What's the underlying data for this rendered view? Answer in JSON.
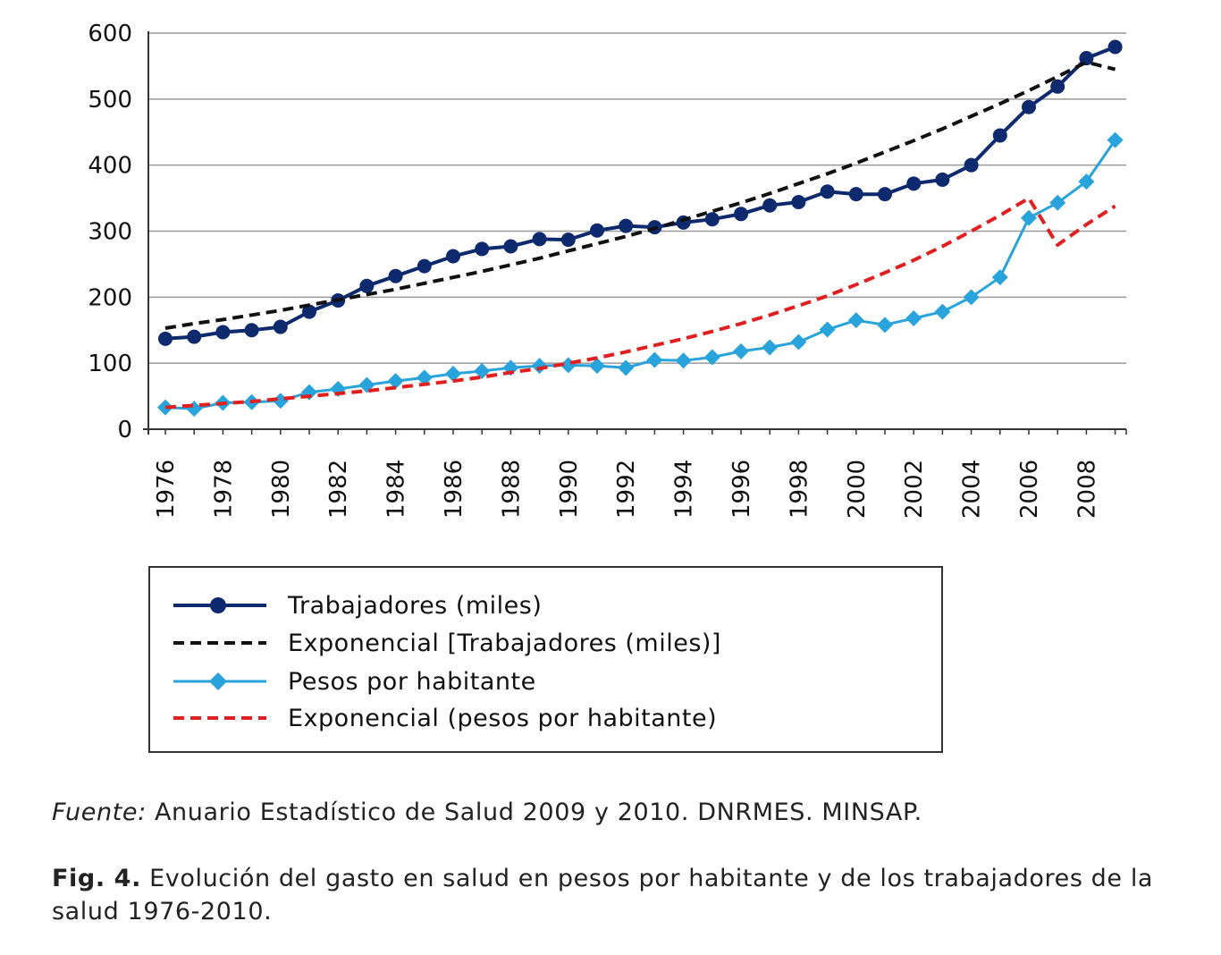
{
  "chart_data": {
    "type": "line",
    "title": "",
    "xlabel": "",
    "ylabel": "",
    "x": [
      1976,
      1977,
      1978,
      1979,
      1980,
      1981,
      1982,
      1983,
      1984,
      1985,
      1986,
      1987,
      1988,
      1989,
      1990,
      1991,
      1992,
      1993,
      1994,
      1995,
      1996,
      1997,
      1998,
      1999,
      2000,
      2001,
      2002,
      2003,
      2004,
      2005,
      2006,
      2007,
      2008,
      2009
    ],
    "x_tick_labels": [
      "1976",
      "1978",
      "1980",
      "1982",
      "1984",
      "1986",
      "1988",
      "1990",
      "1992",
      "1994",
      "1996",
      "1998",
      "2000",
      "2002",
      "2004",
      "2006",
      "2008"
    ],
    "ylim": [
      0,
      600
    ],
    "y_ticks": [
      0,
      100,
      200,
      300,
      400,
      500,
      600
    ],
    "grid": true,
    "legend_position": "bottom",
    "series": [
      {
        "name": "Trabajadores (miles)",
        "color": "#0d2a6e",
        "style": "solid",
        "marker": "circle",
        "values": [
          137,
          140,
          147,
          150,
          155,
          178,
          195,
          217,
          232,
          247,
          262,
          273,
          277,
          288,
          287,
          301,
          308,
          306,
          313,
          318,
          326,
          339,
          344,
          360,
          356,
          356,
          372,
          378,
          400,
          445,
          488,
          519,
          562,
          579
        ]
      },
      {
        "name": "Exponencial [Trabajadores (miles)]",
        "color": "#111111",
        "style": "dashed",
        "marker": "none",
        "values": [
          153,
          160,
          166,
          173,
          180,
          188,
          196,
          204,
          212,
          221,
          230,
          239,
          249,
          259,
          270,
          281,
          292,
          304,
          317,
          330,
          343,
          357,
          372,
          387,
          403,
          420,
          437,
          455,
          474,
          493,
          513,
          534,
          556,
          545
        ]
      },
      {
        "name": "Pesos por habitante",
        "color": "#29a3dc",
        "style": "solid",
        "marker": "diamond",
        "values": [
          33,
          31,
          40,
          41,
          43,
          56,
          61,
          67,
          73,
          78,
          84,
          88,
          93,
          96,
          97,
          96,
          93,
          105,
          104,
          109,
          118,
          124,
          132,
          151,
          165,
          158,
          168,
          178,
          200,
          230,
          320,
          343,
          375,
          438
        ]
      },
      {
        "name": "Exponencial (pesos por habitante)",
        "color": "#e02020",
        "style": "dashed",
        "marker": "none",
        "values": [
          33,
          36,
          39,
          42,
          46,
          50,
          54,
          58,
          63,
          68,
          73,
          79,
          86,
          92,
          100,
          108,
          117,
          127,
          137,
          148,
          160,
          173,
          187,
          202,
          219,
          237,
          256,
          277,
          300,
          324,
          350,
          279,
          310,
          338
        ]
      }
    ]
  },
  "source": {
    "label": "Fuente:",
    "text": " Anuario Estadístico de Salud 2009 y 2010. DNRMES. MINSAP."
  },
  "caption": {
    "label": "Fig. 4.",
    "text": " Evolución del gasto en salud en pesos por habitante y de los trabajadores de la salud 1976-2010."
  }
}
